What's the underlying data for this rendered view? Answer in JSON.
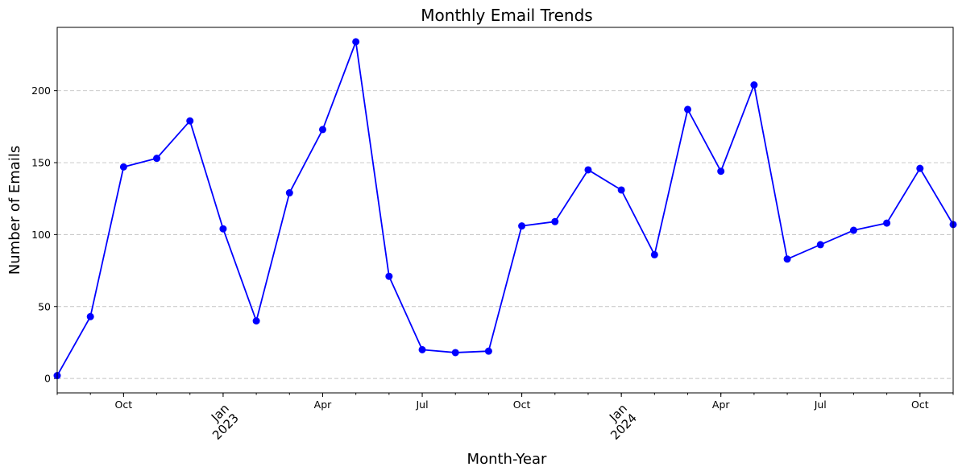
{
  "chart_data": {
    "type": "line",
    "title": "Monthly Email Trends",
    "xlabel": "Month-Year",
    "ylabel": "Number of Emails",
    "ylim": [
      -10,
      244
    ],
    "grid": "horizontal dashed",
    "line_color": "#0000ff",
    "marker": "circle",
    "x": [
      "2022-08",
      "2022-09",
      "2022-10",
      "2022-11",
      "2022-12",
      "2023-01",
      "2023-02",
      "2023-03",
      "2023-04",
      "2023-05",
      "2023-06",
      "2023-07",
      "2023-08",
      "2023-09",
      "2023-10",
      "2023-11",
      "2023-12",
      "2024-01",
      "2024-02",
      "2024-03",
      "2024-04",
      "2024-05",
      "2024-06",
      "2024-07",
      "2024-08",
      "2024-09",
      "2024-10",
      "2024-11"
    ],
    "values": [
      2,
      43,
      147,
      153,
      179,
      104,
      40,
      129,
      173,
      234,
      71,
      20,
      18,
      19,
      106,
      109,
      145,
      131,
      86,
      187,
      144,
      204,
      83,
      93,
      103,
      108,
      146,
      107
    ],
    "y_ticks": [
      0,
      50,
      100,
      150,
      200
    ],
    "x_major_ticks": [
      {
        "x": "2022-10",
        "label": "Oct",
        "year": ""
      },
      {
        "x": "2023-01",
        "label": "Jan",
        "year": "2023"
      },
      {
        "x": "2023-04",
        "label": "Apr",
        "year": ""
      },
      {
        "x": "2023-07",
        "label": "Jul",
        "year": ""
      },
      {
        "x": "2023-10",
        "label": "Oct",
        "year": ""
      },
      {
        "x": "2024-01",
        "label": "Jan",
        "year": "2024"
      },
      {
        "x": "2024-04",
        "label": "Apr",
        "year": ""
      },
      {
        "x": "2024-07",
        "label": "Jul",
        "year": ""
      },
      {
        "x": "2024-10",
        "label": "Oct",
        "year": ""
      }
    ]
  }
}
